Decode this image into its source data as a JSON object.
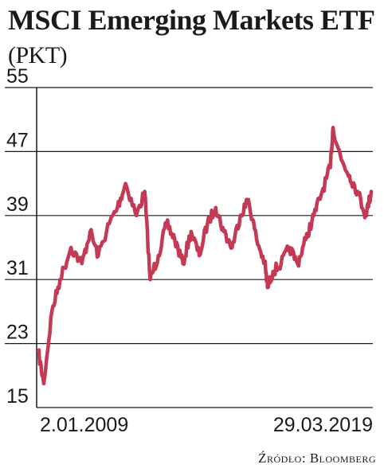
{
  "header": {
    "title": "MSCI Emerging Markets ETF",
    "subtitle": "(PKT)"
  },
  "source": "Źródło: Bloomberg",
  "colors": {
    "line": "#c43a54",
    "grid": "#1a1a1a",
    "text": "#1a1a1a"
  },
  "chart_data": {
    "type": "line",
    "title": "MSCI Emerging Markets ETF (PKT)",
    "xlabel": "",
    "ylabel": "",
    "ylim": [
      15,
      55
    ],
    "yticks": [
      15,
      23,
      31,
      39,
      47,
      55
    ],
    "grid": true,
    "x_tick_labels": [
      "2.01.2009",
      "29.03.2019"
    ],
    "x": [
      "2009-01",
      "2009-03",
      "2009-06",
      "2009-09",
      "2010-01",
      "2010-05",
      "2010-08",
      "2010-11",
      "2011-03",
      "2011-06",
      "2011-09",
      "2012-01",
      "2012-04",
      "2012-06",
      "2012-09",
      "2012-12",
      "2013-03",
      "2013-06",
      "2013-09",
      "2013-12",
      "2014-03",
      "2014-06",
      "2014-09",
      "2014-12",
      "2015-03",
      "2015-06",
      "2015-09",
      "2015-12",
      "2016-01",
      "2016-03",
      "2016-06",
      "2016-09",
      "2016-12",
      "2017-03",
      "2017-06",
      "2017-09",
      "2017-12",
      "2018-01",
      "2018-04",
      "2018-07",
      "2018-10",
      "2019-01",
      "2019-03"
    ],
    "series": [
      {
        "values": [
          22,
          18,
          27,
          31,
          35,
          33,
          37,
          34,
          38,
          40,
          43,
          39,
          42,
          31,
          34,
          38,
          36,
          33,
          37,
          34,
          38,
          40,
          37,
          35,
          39,
          41,
          36,
          33,
          30,
          32,
          33,
          35,
          33,
          36,
          39,
          42,
          45,
          50,
          46,
          44,
          42,
          39,
          42
        ]
      }
    ]
  }
}
